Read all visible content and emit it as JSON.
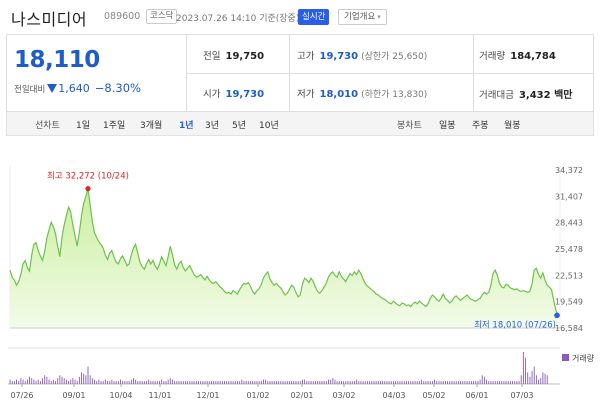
{
  "header": {
    "name": "나스미디어",
    "code": "089600",
    "market": "코스닥",
    "date": "2023.07.26 14:10 기준(장중)",
    "live_label": "실시간",
    "info_label": "기업개요"
  },
  "quote": {
    "price": "18,110",
    "change_label": "전일대비",
    "change": "1,640",
    "change_pct": "−8.30%",
    "prev_close_label": "전일",
    "prev_close": "19,750",
    "high_label": "고가",
    "high": "19,730",
    "upper_limit": "(상한가 25,650)",
    "volume_label": "거래량",
    "volume": "184,784",
    "open_label": "시가",
    "open": "19,730",
    "low_label": "저가",
    "low": "18,010",
    "lower_limit": "(하한가 13,830)",
    "amount_label": "거래대금",
    "amount": "3,432 백만"
  },
  "periods": {
    "title": "선차트",
    "items": [
      "1일",
      "1주일",
      "3개월",
      "1년",
      "3년",
      "5년",
      "10년"
    ],
    "selected": "1년",
    "candle_title": "봉차트",
    "candle_items": [
      "일봉",
      "주봉",
      "월봉"
    ]
  },
  "colors": {
    "line": "#6cc24a",
    "fill_top": "#c9ee9e",
    "fill_bottom": "#f3fbe9",
    "high_marker": "#d9262a",
    "low_marker": "#2a5ee8",
    "volume": "#8a5bb8"
  },
  "chart_data": {
    "type": "area",
    "y_ticks": [
      "34,372",
      "31,407",
      "28,443",
      "25,478",
      "22,513",
      "19,549",
      "16,584"
    ],
    "ylim": [
      16584,
      34372
    ],
    "x_ticks": [
      "07/26",
      "09/01",
      "10/04",
      "11/01",
      "12/01",
      "01/02",
      "02/01",
      "03/02",
      "04/03",
      "05/02",
      "06/01",
      "07/03"
    ],
    "high_annotation": "최고 32,272 (10/24)",
    "low_annotation": "최저 18,010 (07/26)",
    "volume_label": "거래량",
    "series": [
      {
        "values": [
          23100,
          22300,
          22000,
          21400,
          21800,
          22600,
          23800,
          24200,
          23400,
          23000,
          24800,
          26000,
          26200,
          25300,
          24700,
          24200,
          25200,
          26700,
          27600,
          28500,
          28000,
          27200,
          25800,
          24600,
          26800,
          28200,
          29200,
          30200,
          29700,
          28200,
          27000,
          25800,
          27300,
          29200,
          30600,
          31400,
          32272,
          30500,
          28600,
          27300,
          26800,
          26300,
          26000,
          25600,
          24800,
          24300,
          25000,
          25300,
          24600,
          24000,
          23800,
          24400,
          24700,
          24200,
          23600,
          23800,
          24800,
          25600,
          26000,
          25000,
          24000,
          23500,
          23200,
          23800,
          24300,
          23800,
          24200,
          23600,
          23200,
          23800,
          24600,
          24100,
          23600,
          24600,
          25800,
          24800,
          23700,
          23200,
          23800,
          24100,
          23400,
          23000,
          23300,
          23600,
          23100,
          22600,
          22300,
          22400,
          22600,
          22300,
          22000,
          22400,
          22000,
          21700,
          21600,
          21800,
          21500,
          21200,
          21000,
          20700,
          20500,
          20600,
          20400,
          20800,
          20600,
          20400,
          20900,
          21300,
          21600,
          21500,
          21700,
          21300,
          20700,
          20400,
          20800,
          21000,
          21500,
          22200,
          22600,
          22900,
          22100,
          21700,
          21400,
          21600,
          21300,
          21100,
          20700,
          20300,
          20500,
          20900,
          21400,
          21200,
          20600,
          20100,
          20300,
          21500,
          22200,
          22000,
          21700,
          22200,
          21800,
          21200,
          20700,
          20500,
          20800,
          21200,
          21600,
          22300,
          22700,
          22900,
          22500,
          22300,
          22900,
          22400,
          22100,
          21800,
          22300,
          22700,
          22500,
          22900,
          22600,
          23100,
          22700,
          22100,
          21600,
          21300,
          21100,
          20900,
          20700,
          20400,
          20300,
          20100,
          19900,
          19800,
          19600,
          19400,
          19300,
          19600,
          19400,
          19200,
          19100,
          19400,
          19300,
          19100,
          19200,
          19000,
          19300,
          19500,
          19300,
          19600,
          19400,
          19200,
          19000,
          19300,
          19900,
          20300,
          20100,
          19800,
          19600,
          19900,
          20400,
          19900,
          19700,
          19400,
          19600,
          20000,
          20200,
          19900,
          19700,
          19900,
          20100,
          20300,
          20000,
          19800,
          19700,
          19600,
          19800,
          19900,
          20300,
          20600,
          20400,
          20600,
          21400,
          22700,
          23100,
          22500,
          21600,
          21200,
          21100,
          21500,
          21400,
          21100,
          21000,
          20900,
          21000,
          20800,
          20700,
          20800,
          20700,
          20600,
          20700,
          21500,
          23100,
          23300,
          22600,
          22200,
          22800,
          22000,
          21400,
          21200,
          20900,
          19700,
          18600,
          18010
        ]
      }
    ],
    "volume": [
      3,
      2,
      2,
      3,
      2,
      4,
      3,
      2,
      3,
      5,
      4,
      3,
      2,
      3,
      2,
      4,
      6,
      5,
      3,
      2,
      3,
      2,
      4,
      6,
      5,
      4,
      3,
      2,
      3,
      4,
      3,
      2,
      5,
      8,
      7,
      6,
      12,
      6,
      4,
      3,
      2,
      3,
      2,
      2,
      3,
      2,
      2,
      3,
      2,
      2,
      2,
      3,
      2,
      2,
      2,
      2,
      3,
      4,
      3,
      2,
      2,
      2,
      2,
      2,
      3,
      2,
      2,
      2,
      2,
      2,
      3,
      2,
      2,
      3,
      4,
      3,
      2,
      2,
      2,
      2,
      2,
      2,
      2,
      2,
      2,
      2,
      2,
      2,
      2,
      2,
      2,
      2,
      2,
      2,
      2,
      2,
      2,
      2,
      2,
      2,
      2,
      2,
      2,
      2,
      2,
      2,
      2,
      3,
      2,
      2,
      2,
      2,
      2,
      2,
      2,
      2,
      2,
      3,
      3,
      2,
      2,
      2,
      2,
      2,
      2,
      2,
      2,
      2,
      2,
      2,
      2,
      2,
      2,
      2,
      2,
      3,
      3,
      2,
      2,
      2,
      2,
      2,
      2,
      2,
      2,
      2,
      2,
      3,
      3,
      4,
      3,
      2,
      2,
      2,
      2,
      2,
      2,
      2,
      2,
      2,
      3,
      2,
      2,
      2,
      2,
      2,
      2,
      2,
      2,
      2,
      2,
      2,
      2,
      2,
      2,
      2,
      2,
      2,
      2,
      2,
      2,
      2,
      2,
      2,
      2,
      2,
      2,
      2,
      2,
      2,
      3,
      2,
      2,
      2,
      2,
      2,
      3,
      2,
      2,
      2,
      2,
      2,
      2,
      2,
      2,
      2,
      2,
      2,
      2,
      2,
      2,
      2,
      2,
      2,
      2,
      2,
      2,
      3,
      6,
      5,
      3,
      2,
      2,
      2,
      2,
      2,
      2,
      2,
      2,
      2,
      2,
      2,
      2,
      2,
      2,
      2,
      6,
      22,
      18,
      8,
      5,
      9,
      12,
      6,
      3,
      4,
      8,
      7,
      6
    ],
    "grid": false
  }
}
